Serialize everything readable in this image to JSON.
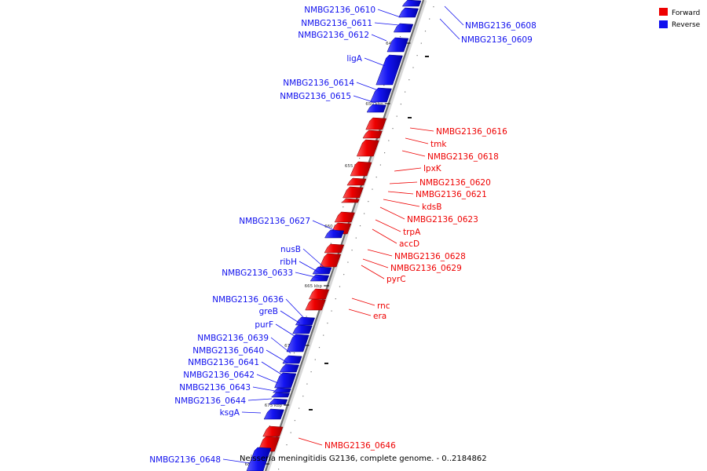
{
  "caption": "Neisseria meningitidis G2136, complete genome. - 0..2184862",
  "legend": [
    {
      "label": "Forward",
      "color": "#ee0000"
    },
    {
      "label": "Reverse",
      "color": "#1010ee"
    }
  ],
  "ticks": [
    "645 kbp",
    "650 kbp",
    "655 kbp",
    "660 kbp",
    "665 kbp",
    "670 kbp",
    "675 kbp",
    "680 kbp"
  ],
  "genes": {
    "reverse": [
      "NMBG2136_0610",
      "NMBG2136_0611",
      "NMBG2136_0612",
      "ligA",
      "NMBG2136_0614",
      "NMBG2136_0615",
      "NMBG2136_0627",
      "nusB",
      "ribH",
      "NMBG2136_0633",
      "NMBG2136_0636",
      "greB",
      "purF",
      "NMBG2136_0639",
      "NMBG2136_0640",
      "NMBG2136_0641",
      "NMBG2136_0642",
      "NMBG2136_0643",
      "NMBG2136_0644",
      "ksgA",
      "NMBG2136_0648"
    ],
    "reverse_right": [
      "NMBG2136_0608",
      "NMBG2136_0609"
    ],
    "forward": [
      "NMBG2136_0616",
      "tmk",
      "NMBG2136_0618",
      "lpxK",
      "NMBG2136_0620",
      "NMBG2136_0621",
      "kdsB",
      "NMBG2136_0623",
      "trpA",
      "accD",
      "NMBG2136_0628",
      "NMBG2136_0629",
      "pyrC",
      "rnc",
      "era",
      "NMBG2136_0646"
    ]
  }
}
